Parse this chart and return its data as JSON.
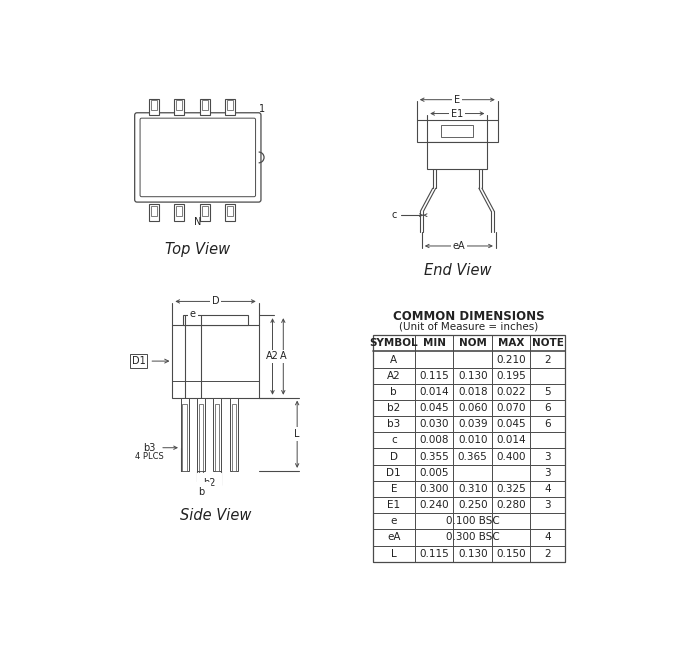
{
  "title": "COMMON DIMENSIONS",
  "subtitle": "(Unit of Measure = inches)",
  "table_headers": [
    "SYMBOL",
    "MIN",
    "NOM",
    "MAX",
    "NOTE"
  ],
  "table_rows": [
    [
      "A",
      "",
      "",
      "0.210",
      "2"
    ],
    [
      "A2",
      "0.115",
      "0.130",
      "0.195",
      ""
    ],
    [
      "b",
      "0.014",
      "0.018",
      "0.022",
      "5"
    ],
    [
      "b2",
      "0.045",
      "0.060",
      "0.070",
      "6"
    ],
    [
      "b3",
      "0.030",
      "0.039",
      "0.045",
      "6"
    ],
    [
      "c",
      "0.008",
      "0.010",
      "0.014",
      ""
    ],
    [
      "D",
      "0.355",
      "0.365",
      "0.400",
      "3"
    ],
    [
      "D1",
      "0.005",
      "",
      "",
      "3"
    ],
    [
      "E",
      "0.300",
      "0.310",
      "0.325",
      "4"
    ],
    [
      "E1",
      "0.240",
      "0.250",
      "0.280",
      "3"
    ],
    [
      "e",
      "0.100 BSC",
      "",
      "",
      ""
    ],
    [
      "eA",
      "0.300 BSC",
      "",
      "",
      "4"
    ],
    [
      "L",
      "0.115",
      "0.130",
      "0.150",
      "2"
    ]
  ],
  "bg_color": "#ffffff",
  "line_color": "#4a4a4a",
  "text_color": "#222222"
}
